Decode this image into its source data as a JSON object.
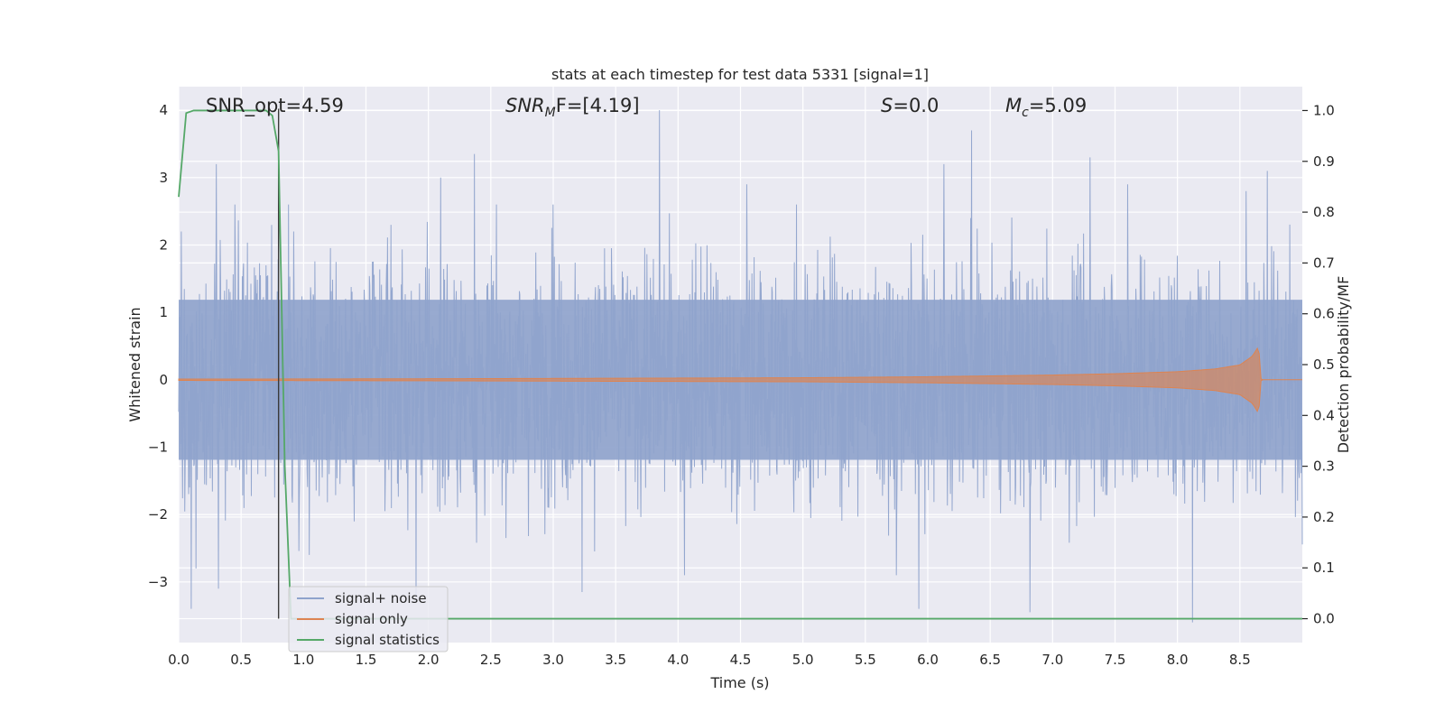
{
  "chart_data": {
    "type": "line",
    "title": "stats at each timestep for test data 5331 [signal=1]",
    "xlabel": "Time (s)",
    "ylabel": "Whitened strain",
    "ylabel_right": "Detection probability/MF",
    "xlim": [
      0,
      9
    ],
    "ylim": [
      -3.9,
      4.35
    ],
    "ylim_right": [
      -0.047,
      1.047
    ],
    "x_ticks": [
      0,
      0.5,
      1,
      1.5,
      2,
      2.5,
      3,
      3.5,
      4,
      4.5,
      5,
      5.5,
      6,
      6.5,
      7,
      7.5,
      8,
      8.5
    ],
    "x_tick_labels": [
      "0.0",
      "0.5",
      "1.0",
      "1.5",
      "2.0",
      "2.5",
      "3.0",
      "3.5",
      "4.0",
      "4.5",
      "5.0",
      "5.5",
      "6.0",
      "6.5",
      "7.0",
      "7.5",
      "8.0",
      "8.5"
    ],
    "y_ticks": [
      -3,
      -2,
      -1,
      0,
      1,
      2,
      3,
      4
    ],
    "y_tick_labels": [
      "−3",
      "−2",
      "−1",
      "0",
      "1",
      "2",
      "3",
      "4"
    ],
    "y_right_ticks": [
      0,
      0.1,
      0.2,
      0.3,
      0.4,
      0.5,
      0.6,
      0.7,
      0.8,
      0.9,
      1.0
    ],
    "y_right_tick_labels": [
      "0.0",
      "0.1",
      "0.2",
      "0.3",
      "0.4",
      "0.5",
      "0.6",
      "0.7",
      "0.8",
      "0.9",
      "1.0"
    ],
    "grid": true,
    "legend_position": "bottom-left",
    "annotations": {
      "snr_opt": "SNR_opt=4.59",
      "snr_mf_symbol": "SNR",
      "snr_mf_sub": "M",
      "snr_mf_rest": "F=[4.19]",
      "s_symbol": "S",
      "s_value": "=0.0",
      "mc_symbol": "M",
      "mc_sub": "c",
      "mc_value": "=5.09"
    },
    "vertical_marker_x": 0.8,
    "series": [
      {
        "name": "signal+ noise",
        "color": "#8fa3cc",
        "axis": "left",
        "noise_envelope_peaks": [
          {
            "x": 0.02,
            "y": 2.2
          },
          {
            "x": 0.14,
            "y": -2.8
          },
          {
            "x": 0.3,
            "y": 3.2
          },
          {
            "x": 0.1,
            "y": -3.4
          },
          {
            "x": 0.32,
            "y": -3.1
          },
          {
            "x": 0.45,
            "y": 2.6
          },
          {
            "x": 0.88,
            "y": 2.6
          },
          {
            "x": 0.92,
            "y": 2.2
          },
          {
            "x": 1.7,
            "y": 2.3
          },
          {
            "x": 1.9,
            "y": -3.3
          },
          {
            "x": 2.1,
            "y": 3.0
          },
          {
            "x": 2.37,
            "y": 3.35
          },
          {
            "x": 3.0,
            "y": 2.6
          },
          {
            "x": 3.23,
            "y": -3.15
          },
          {
            "x": 3.85,
            "y": 4.0
          },
          {
            "x": 4.05,
            "y": -2.9
          },
          {
            "x": 4.55,
            "y": 2.9
          },
          {
            "x": 4.95,
            "y": 2.6
          },
          {
            "x": 5.75,
            "y": -2.9
          },
          {
            "x": 5.93,
            "y": -3.4
          },
          {
            "x": 6.13,
            "y": 3.2
          },
          {
            "x": 6.35,
            "y": 3.7
          },
          {
            "x": 6.82,
            "y": -3.45
          },
          {
            "x": 7.3,
            "y": 3.3
          },
          {
            "x": 7.6,
            "y": 2.9
          },
          {
            "x": 8.12,
            "y": -3.6
          },
          {
            "x": 8.72,
            "y": 3.1
          },
          {
            "x": 8.55,
            "y": 2.8
          }
        ],
        "typical_amplitude": 1.25
      },
      {
        "name": "signal only",
        "color": "#dd8452",
        "axis": "left",
        "x": [
          0,
          1,
          2,
          3,
          4,
          5,
          6,
          7,
          7.5,
          8,
          8.3,
          8.5,
          8.6,
          8.65,
          8.67,
          9
        ],
        "amplitude": [
          0.01,
          0.012,
          0.015,
          0.02,
          0.025,
          0.03,
          0.045,
          0.07,
          0.09,
          0.12,
          0.16,
          0.22,
          0.35,
          0.5,
          0.0,
          0.0
        ]
      },
      {
        "name": "signal statistics",
        "color": "#55a868",
        "axis": "right",
        "x": [
          0,
          0.06,
          0.12,
          0.2,
          0.3,
          0.4,
          0.5,
          0.6,
          0.7,
          0.75,
          0.8,
          0.85,
          0.9,
          1.0,
          2,
          3,
          4,
          5,
          6,
          7,
          8,
          9
        ],
        "y": [
          0.83,
          0.995,
          1.0,
          1.0,
          1.0,
          1.0,
          1.0,
          1.0,
          1.0,
          0.99,
          0.92,
          0.3,
          0.0,
          0.0,
          0.0,
          0.0,
          0.0,
          0.0,
          0.0,
          0.0,
          0.0,
          0.0
        ]
      }
    ]
  }
}
